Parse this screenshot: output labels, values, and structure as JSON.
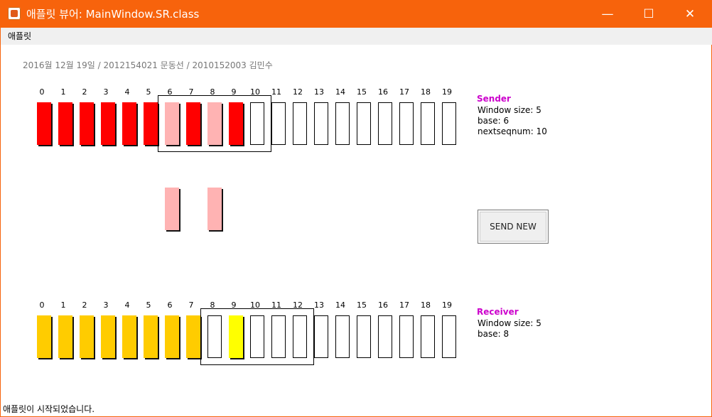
{
  "window": {
    "title": "애플릿 뷰어: MainWindow.SR.class",
    "accent": "#f7630c"
  },
  "controls": {
    "minimize": "—",
    "maximize": "☐",
    "close": "✕"
  },
  "menu": {
    "items": [
      "애플릿"
    ]
  },
  "info_line": "2016월 12월 19일 / 2012154021 문동선 / 2010152003 김민수",
  "numbers": [
    "0",
    "1",
    "2",
    "3",
    "4",
    "5",
    "6",
    "7",
    "8",
    "9",
    "10",
    "11",
    "12",
    "13",
    "14",
    "15",
    "16",
    "17",
    "18",
    "19"
  ],
  "sender": {
    "label": "Sender",
    "window_size": "Window size: 5",
    "base": "base: 6",
    "nextseqnum": "nextseqnum: 10",
    "base_value": 6,
    "nextseq_value": 10,
    "window_length": 5,
    "states": [
      "acked",
      "acked",
      "acked",
      "acked",
      "acked",
      "acked",
      "sent",
      "acked",
      "sent",
      "acked",
      "empty",
      "empty",
      "empty",
      "empty",
      "empty",
      "empty",
      "empty",
      "empty",
      "empty",
      "empty"
    ],
    "in_flight": [
      6,
      8
    ]
  },
  "receiver": {
    "label": "Receiver",
    "window_size": "Window size: 5",
    "base": "base: 8",
    "base_value": 8,
    "window_length": 5,
    "states": [
      "delivered",
      "delivered",
      "delivered",
      "delivered",
      "delivered",
      "delivered",
      "delivered",
      "delivered",
      "empty",
      "buffered",
      "empty",
      "empty",
      "empty",
      "empty",
      "empty",
      "empty",
      "empty",
      "empty",
      "empty",
      "empty"
    ]
  },
  "colors": {
    "acked": "#ff0000",
    "sent": "#ffb3b3",
    "delivered": "#ffcc00",
    "buffered": "#ffff00",
    "empty": "#ffffff",
    "label": "#cc00cc"
  },
  "send_button": "SEND NEW",
  "status": "애플릿이 시작되었습니다."
}
